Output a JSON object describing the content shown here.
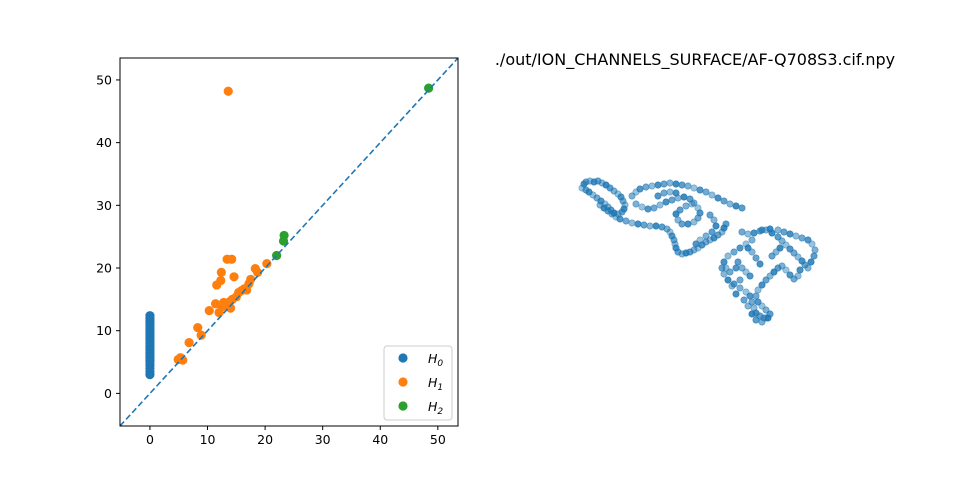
{
  "chart_data": [
    {
      "type": "scatter",
      "title": "",
      "xlabel": "",
      "ylabel": "",
      "xlim": [
        -5.2,
        53.5
      ],
      "ylim": [
        -5.2,
        53.5
      ],
      "xticks": [
        0,
        10,
        20,
        30,
        40,
        50
      ],
      "yticks": [
        0,
        10,
        20,
        30,
        40,
        50
      ],
      "xtick_labels": [
        "0",
        "10",
        "20",
        "30",
        "40",
        "50"
      ],
      "ytick_labels": [
        "0",
        "10",
        "20",
        "30",
        "40",
        "50"
      ],
      "grid": false,
      "legend_position": "lower-right",
      "diagonal": {
        "style": "dashed",
        "color": "#1f77b4"
      },
      "series": [
        {
          "name": "H0",
          "label_main": "H",
          "label_sub": "0",
          "color": "#1f77b4",
          "points": [
            [
              0,
              3.0
            ],
            [
              0,
              3.5
            ],
            [
              0,
              4.0
            ],
            [
              0,
              4.5
            ],
            [
              0,
              5.0
            ],
            [
              0,
              5.3
            ],
            [
              0,
              5.7
            ],
            [
              0,
              6.1
            ],
            [
              0,
              6.5
            ],
            [
              0,
              6.9
            ],
            [
              0,
              7.2
            ],
            [
              0,
              7.6
            ],
            [
              0,
              8.0
            ],
            [
              0,
              8.4
            ],
            [
              0,
              8.8
            ],
            [
              0,
              9.2
            ],
            [
              0,
              9.6
            ],
            [
              0,
              10.0
            ],
            [
              0,
              10.4
            ],
            [
              0,
              10.8
            ],
            [
              0,
              11.2
            ],
            [
              0,
              11.6
            ],
            [
              0,
              12.0
            ],
            [
              0,
              12.4
            ]
          ]
        },
        {
          "name": "H1",
          "label_main": "H",
          "label_sub": "1",
          "color": "#ff7f0e",
          "points": [
            [
              4.9,
              5.4
            ],
            [
              5.3,
              5.7
            ],
            [
              5.7,
              5.3
            ],
            [
              6.8,
              8.1
            ],
            [
              8.3,
              10.5
            ],
            [
              8.9,
              9.3
            ],
            [
              10.3,
              13.2
            ],
            [
              11.4,
              14.3
            ],
            [
              11.6,
              17.3
            ],
            [
              12.0,
              12.9
            ],
            [
              12.3,
              18.0
            ],
            [
              12.4,
              19.3
            ],
            [
              12.5,
              13.8
            ],
            [
              12.8,
              14.5
            ],
            [
              13.2,
              14.0
            ],
            [
              13.4,
              21.4
            ],
            [
              13.6,
              48.2
            ],
            [
              13.8,
              14.6
            ],
            [
              14.0,
              13.6
            ],
            [
              14.2,
              21.4
            ],
            [
              14.3,
              15.0
            ],
            [
              14.6,
              18.6
            ],
            [
              15.0,
              15.4
            ],
            [
              15.4,
              16.1
            ],
            [
              15.9,
              16.4
            ],
            [
              16.4,
              16.7
            ],
            [
              16.8,
              16.5
            ],
            [
              17.2,
              17.5
            ],
            [
              17.5,
              18.2
            ],
            [
              18.3,
              19.9
            ],
            [
              18.7,
              19.3
            ],
            [
              20.3,
              20.7
            ]
          ]
        },
        {
          "name": "H2",
          "label_main": "H",
          "label_sub": "2",
          "color": "#2ca02c",
          "points": [
            [
              22.0,
              22.0
            ],
            [
              23.2,
              24.3
            ],
            [
              23.3,
              25.2
            ],
            [
              48.4,
              48.7
            ]
          ]
        }
      ]
    },
    {
      "type": "scatter",
      "title": "./out/ION_CHANNELS_SURFACE/AF-Q708S3.cif.npy",
      "projection": "3d",
      "axes_visible": false,
      "color": "#1f77b4",
      "points": [
        [
          582,
          188
        ],
        [
          584,
          184
        ],
        [
          586,
          182
        ],
        [
          590,
          181
        ],
        [
          594,
          182
        ],
        [
          598,
          181
        ],
        [
          602,
          183
        ],
        [
          606,
          185
        ],
        [
          610,
          188
        ],
        [
          614,
          191
        ],
        [
          618,
          194
        ],
        [
          621,
          197
        ],
        [
          623,
          201
        ],
        [
          625,
          205
        ],
        [
          624,
          209
        ],
        [
          622,
          212
        ],
        [
          618,
          214
        ],
        [
          614,
          213
        ],
        [
          611,
          210
        ],
        [
          608,
          207
        ],
        [
          605,
          204
        ],
        [
          601,
          201
        ],
        [
          597,
          198
        ],
        [
          593,
          195
        ],
        [
          589,
          192
        ],
        [
          586,
          190
        ],
        [
          600,
          205
        ],
        [
          604,
          208
        ],
        [
          608,
          211
        ],
        [
          612,
          214
        ],
        [
          616,
          217
        ],
        [
          620,
          219
        ],
        [
          626,
          221
        ],
        [
          632,
          223
        ],
        [
          638,
          224
        ],
        [
          644,
          225
        ],
        [
          650,
          226
        ],
        [
          656,
          226
        ],
        [
          662,
          227
        ],
        [
          667,
          229
        ],
        [
          670,
          232
        ],
        [
          672,
          236
        ],
        [
          674,
          240
        ],
        [
          675,
          244
        ],
        [
          676,
          248
        ],
        [
          678,
          252
        ],
        [
          682,
          254
        ],
        [
          686,
          253
        ],
        [
          690,
          252
        ],
        [
          694,
          250
        ],
        [
          698,
          248
        ],
        [
          702,
          245
        ],
        [
          706,
          242
        ],
        [
          710,
          240
        ],
        [
          714,
          238
        ],
        [
          718,
          235
        ],
        [
          722,
          232
        ],
        [
          724,
          228
        ],
        [
          726,
          224
        ],
        [
          632,
          196
        ],
        [
          636,
          192
        ],
        [
          640,
          189
        ],
        [
          646,
          187
        ],
        [
          652,
          186
        ],
        [
          658,
          185
        ],
        [
          664,
          184
        ],
        [
          670,
          183
        ],
        [
          676,
          184
        ],
        [
          682,
          185
        ],
        [
          688,
          186
        ],
        [
          694,
          188
        ],
        [
          700,
          190
        ],
        [
          706,
          192
        ],
        [
          712,
          195
        ],
        [
          718,
          198
        ],
        [
          724,
          201
        ],
        [
          730,
          204
        ],
        [
          736,
          206
        ],
        [
          742,
          208
        ],
        [
          636,
          204
        ],
        [
          642,
          207
        ],
        [
          648,
          209
        ],
        [
          654,
          208
        ],
        [
          660,
          205
        ],
        [
          666,
          202
        ],
        [
          672,
          200
        ],
        [
          678,
          198
        ],
        [
          684,
          197
        ],
        [
          690,
          199
        ],
        [
          694,
          203
        ],
        [
          698,
          208
        ],
        [
          700,
          213
        ],
        [
          698,
          218
        ],
        [
          694,
          222
        ],
        [
          688,
          224
        ],
        [
          682,
          224
        ],
        [
          678,
          220
        ],
        [
          676,
          214
        ],
        [
          680,
          210
        ],
        [
          686,
          206
        ],
        [
          692,
          204
        ],
        [
          658,
          196
        ],
        [
          664,
          193
        ],
        [
          670,
          192
        ],
        [
          676,
          193
        ],
        [
          710,
          215
        ],
        [
          714,
          220
        ],
        [
          716,
          226
        ],
        [
          712,
          232
        ],
        [
          706,
          236
        ],
        [
          700,
          240
        ],
        [
          696,
          244
        ],
        [
          742,
          232
        ],
        [
          748,
          234
        ],
        [
          754,
          233
        ],
        [
          760,
          231
        ],
        [
          766,
          230
        ],
        [
          772,
          233
        ],
        [
          778,
          237
        ],
        [
          782,
          241
        ],
        [
          786,
          245
        ],
        [
          790,
          249
        ],
        [
          794,
          253
        ],
        [
          798,
          257
        ],
        [
          802,
          261
        ],
        [
          805,
          265
        ],
        [
          808,
          268
        ],
        [
          811,
          262
        ],
        [
          814,
          256
        ],
        [
          815,
          250
        ],
        [
          812,
          244
        ],
        [
          808,
          240
        ],
        [
          802,
          238
        ],
        [
          796,
          236
        ],
        [
          790,
          234
        ],
        [
          784,
          232
        ],
        [
          778,
          230
        ],
        [
          770,
          229
        ],
        [
          762,
          230
        ],
        [
          752,
          240
        ],
        [
          746,
          244
        ],
        [
          740,
          248
        ],
        [
          734,
          252
        ],
        [
          728,
          256
        ],
        [
          724,
          262
        ],
        [
          722,
          268
        ],
        [
          724,
          274
        ],
        [
          728,
          280
        ],
        [
          734,
          284
        ],
        [
          740,
          288
        ],
        [
          746,
          292
        ],
        [
          750,
          296
        ],
        [
          752,
          302
        ],
        [
          754,
          308
        ],
        [
          756,
          313
        ],
        [
          760,
          316
        ],
        [
          764,
          318
        ],
        [
          768,
          318
        ],
        [
          770,
          314
        ],
        [
          766,
          310
        ],
        [
          762,
          306
        ],
        [
          758,
          302
        ],
        [
          756,
          296
        ],
        [
          758,
          290
        ],
        [
          762,
          285
        ],
        [
          766,
          280
        ],
        [
          770,
          276
        ],
        [
          774,
          272
        ],
        [
          778,
          268
        ],
        [
          782,
          266
        ],
        [
          786,
          270
        ],
        [
          790,
          275
        ],
        [
          794,
          279
        ],
        [
          798,
          276
        ],
        [
          800,
          270
        ],
        [
          772,
          256
        ],
        [
          776,
          252
        ],
        [
          780,
          248
        ],
        [
          738,
          262
        ],
        [
          742,
          268
        ],
        [
          746,
          272
        ],
        [
          750,
          276
        ],
        [
          740,
          280
        ],
        [
          732,
          286
        ],
        [
          736,
          294
        ],
        [
          744,
          300
        ],
        [
          748,
          306
        ],
        [
          752,
          314
        ],
        [
          756,
          320
        ],
        [
          762,
          322
        ],
        [
          766,
          318
        ],
        [
          736,
          268
        ],
        [
          730,
          272
        ],
        [
          726,
          268
        ],
        [
          760,
          264
        ],
        [
          756,
          258
        ],
        [
          752,
          252
        ],
        [
          748,
          248
        ]
      ]
    }
  ]
}
